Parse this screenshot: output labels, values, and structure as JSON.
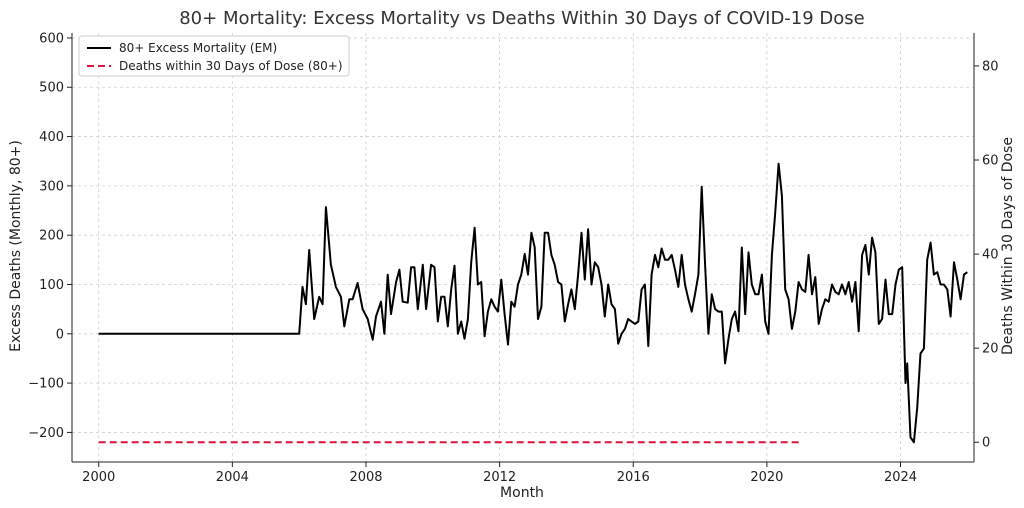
{
  "chart_data": {
    "type": "line",
    "title": "80+ Mortality: Excess Mortality vs Deaths Within 30 Days of COVID-19 Dose",
    "xlabel": "Month",
    "ylabel_left": "Excess Deaths (Monthly, 80+)",
    "ylabel_right": "Deaths Within 30 Days of Dose",
    "xlim": [
      1999.2,
      2026.2
    ],
    "ylim_left": [
      -260,
      610
    ],
    "ylim_right": [
      -4.2,
      87
    ],
    "x_ticks": [
      2000,
      2004,
      2008,
      2012,
      2016,
      2020,
      2024
    ],
    "x_tick_labels": [
      "2000",
      "2004",
      "2008",
      "2012",
      "2016",
      "2020",
      "2024"
    ],
    "y_left_ticks": [
      -200,
      -100,
      0,
      100,
      200,
      300,
      400,
      500,
      600
    ],
    "y_left_tick_labels": [
      "−200",
      "−100",
      "0",
      "100",
      "200",
      "300",
      "400",
      "500",
      "600"
    ],
    "y_right_ticks": [
      0,
      20,
      40,
      60,
      80
    ],
    "y_right_tick_labels": [
      "0",
      "20",
      "40",
      "60",
      "80"
    ],
    "grid": true,
    "legend_position": "top-left",
    "series": [
      {
        "name": "80+ Excess Mortality (EM)",
        "axis": "left",
        "color": "#000000",
        "style": "solid",
        "points": [
          [
            2000.0,
            0
          ],
          [
            2006.0,
            0
          ],
          [
            2006.1,
            95
          ],
          [
            2006.2,
            60
          ],
          [
            2006.3,
            170
          ],
          [
            2006.45,
            30
          ],
          [
            2006.6,
            75
          ],
          [
            2006.7,
            60
          ],
          [
            2006.8,
            257
          ],
          [
            2006.95,
            140
          ],
          [
            2007.1,
            95
          ],
          [
            2007.25,
            75
          ],
          [
            2007.35,
            15
          ],
          [
            2007.5,
            70
          ],
          [
            2007.6,
            70
          ],
          [
            2007.75,
            103
          ],
          [
            2007.9,
            50
          ],
          [
            2008.05,
            30
          ],
          [
            2008.2,
            -12
          ],
          [
            2008.3,
            35
          ],
          [
            2008.45,
            65
          ],
          [
            2008.55,
            0
          ],
          [
            2008.65,
            120
          ],
          [
            2008.75,
            40
          ],
          [
            2008.9,
            105
          ],
          [
            2009.0,
            130
          ],
          [
            2009.1,
            65
          ],
          [
            2009.25,
            63
          ],
          [
            2009.35,
            135
          ],
          [
            2009.45,
            135
          ],
          [
            2009.55,
            50
          ],
          [
            2009.7,
            140
          ],
          [
            2009.8,
            50
          ],
          [
            2009.95,
            140
          ],
          [
            2010.05,
            135
          ],
          [
            2010.15,
            25
          ],
          [
            2010.25,
            75
          ],
          [
            2010.35,
            75
          ],
          [
            2010.45,
            15
          ],
          [
            2010.55,
            90
          ],
          [
            2010.65,
            138
          ],
          [
            2010.75,
            0
          ],
          [
            2010.85,
            25
          ],
          [
            2010.95,
            -10
          ],
          [
            2011.05,
            30
          ],
          [
            2011.15,
            145
          ],
          [
            2011.25,
            215
          ],
          [
            2011.35,
            100
          ],
          [
            2011.45,
            105
          ],
          [
            2011.55,
            -5
          ],
          [
            2011.65,
            45
          ],
          [
            2011.75,
            70
          ],
          [
            2011.85,
            55
          ],
          [
            2011.95,
            45
          ],
          [
            2012.05,
            110
          ],
          [
            2012.15,
            40
          ],
          [
            2012.25,
            -22
          ],
          [
            2012.35,
            65
          ],
          [
            2012.45,
            55
          ],
          [
            2012.55,
            100
          ],
          [
            2012.65,
            120
          ],
          [
            2012.75,
            162
          ],
          [
            2012.85,
            120
          ],
          [
            2012.95,
            205
          ],
          [
            2013.05,
            175
          ],
          [
            2013.15,
            30
          ],
          [
            2013.25,
            55
          ],
          [
            2013.35,
            205
          ],
          [
            2013.45,
            205
          ],
          [
            2013.55,
            160
          ],
          [
            2013.65,
            140
          ],
          [
            2013.75,
            105
          ],
          [
            2013.85,
            100
          ],
          [
            2013.95,
            25
          ],
          [
            2014.05,
            60
          ],
          [
            2014.15,
            90
          ],
          [
            2014.25,
            50
          ],
          [
            2014.35,
            120
          ],
          [
            2014.45,
            205
          ],
          [
            2014.55,
            110
          ],
          [
            2014.65,
            212
          ],
          [
            2014.75,
            100
          ],
          [
            2014.85,
            145
          ],
          [
            2014.95,
            135
          ],
          [
            2015.05,
            100
          ],
          [
            2015.15,
            35
          ],
          [
            2015.25,
            100
          ],
          [
            2015.35,
            60
          ],
          [
            2015.45,
            50
          ],
          [
            2015.55,
            -20
          ],
          [
            2015.65,
            0
          ],
          [
            2015.75,
            10
          ],
          [
            2015.85,
            30
          ],
          [
            2015.95,
            25
          ],
          [
            2016.05,
            20
          ],
          [
            2016.15,
            25
          ],
          [
            2016.25,
            90
          ],
          [
            2016.35,
            100
          ],
          [
            2016.45,
            -25
          ],
          [
            2016.55,
            120
          ],
          [
            2016.65,
            160
          ],
          [
            2016.75,
            135
          ],
          [
            2016.85,
            173
          ],
          [
            2016.95,
            150
          ],
          [
            2017.05,
            150
          ],
          [
            2017.15,
            160
          ],
          [
            2017.25,
            130
          ],
          [
            2017.35,
            95
          ],
          [
            2017.45,
            160
          ],
          [
            2017.55,
            100
          ],
          [
            2017.65,
            70
          ],
          [
            2017.75,
            45
          ],
          [
            2017.85,
            80
          ],
          [
            2017.95,
            120
          ],
          [
            2018.05,
            298
          ],
          [
            2018.15,
            140
          ],
          [
            2018.25,
            0
          ],
          [
            2018.35,
            80
          ],
          [
            2018.45,
            50
          ],
          [
            2018.55,
            45
          ],
          [
            2018.65,
            45
          ],
          [
            2018.75,
            -60
          ],
          [
            2018.85,
            -10
          ],
          [
            2018.95,
            30
          ],
          [
            2019.05,
            45
          ],
          [
            2019.15,
            5
          ],
          [
            2019.25,
            175
          ],
          [
            2019.35,
            40
          ],
          [
            2019.45,
            165
          ],
          [
            2019.55,
            100
          ],
          [
            2019.65,
            80
          ],
          [
            2019.75,
            80
          ],
          [
            2019.85,
            120
          ],
          [
            2019.95,
            25
          ],
          [
            2020.05,
            0
          ],
          [
            2020.15,
            160
          ],
          [
            2020.25,
            245
          ],
          [
            2020.35,
            345
          ],
          [
            2020.45,
            280
          ],
          [
            2020.55,
            90
          ],
          [
            2020.65,
            70
          ],
          [
            2020.75,
            10
          ],
          [
            2020.85,
            45
          ],
          [
            2020.95,
            105
          ],
          [
            2021.05,
            90
          ],
          [
            2021.15,
            85
          ],
          [
            2021.25,
            160
          ],
          [
            2021.35,
            80
          ],
          [
            2021.45,
            115
          ],
          [
            2021.55,
            20
          ],
          [
            2021.65,
            50
          ],
          [
            2021.75,
            70
          ],
          [
            2021.85,
            65
          ],
          [
            2021.95,
            100
          ],
          [
            2022.05,
            85
          ],
          [
            2022.15,
            80
          ],
          [
            2022.25,
            100
          ],
          [
            2022.35,
            80
          ],
          [
            2022.45,
            105
          ],
          [
            2022.55,
            65
          ],
          [
            2022.65,
            105
          ],
          [
            2022.75,
            5
          ],
          [
            2022.85,
            160
          ],
          [
            2022.95,
            180
          ],
          [
            2023.05,
            120
          ],
          [
            2023.15,
            195
          ],
          [
            2023.25,
            165
          ],
          [
            2023.35,
            20
          ],
          [
            2023.45,
            30
          ],
          [
            2023.55,
            110
          ],
          [
            2023.65,
            40
          ],
          [
            2023.75,
            40
          ],
          [
            2023.85,
            100
          ],
          [
            2023.95,
            130
          ],
          [
            2024.05,
            135
          ],
          [
            2024.15,
            -100
          ],
          [
            2024.2,
            -60
          ],
          [
            2024.3,
            -210
          ],
          [
            2024.4,
            -220
          ],
          [
            2024.5,
            -150
          ],
          [
            2024.6,
            -40
          ],
          [
            2024.7,
            -30
          ],
          [
            2024.8,
            150
          ],
          [
            2024.9,
            185
          ],
          [
            2025.0,
            120
          ],
          [
            2025.1,
            125
          ],
          [
            2025.2,
            100
          ],
          [
            2025.3,
            100
          ],
          [
            2025.4,
            90
          ],
          [
            2025.5,
            35
          ],
          [
            2025.6,
            145
          ],
          [
            2025.7,
            110
          ],
          [
            2025.8,
            70
          ],
          [
            2025.9,
            120
          ],
          [
            2026.0,
            125
          ]
        ]
      },
      {
        "name": "Deaths within 30 Days of Dose (80+)",
        "axis": "right",
        "color": "#dc143c",
        "style": "dashed",
        "points": [
          [
            2000.0,
            0
          ],
          [
            2021.0,
            0
          ]
        ]
      }
    ]
  }
}
